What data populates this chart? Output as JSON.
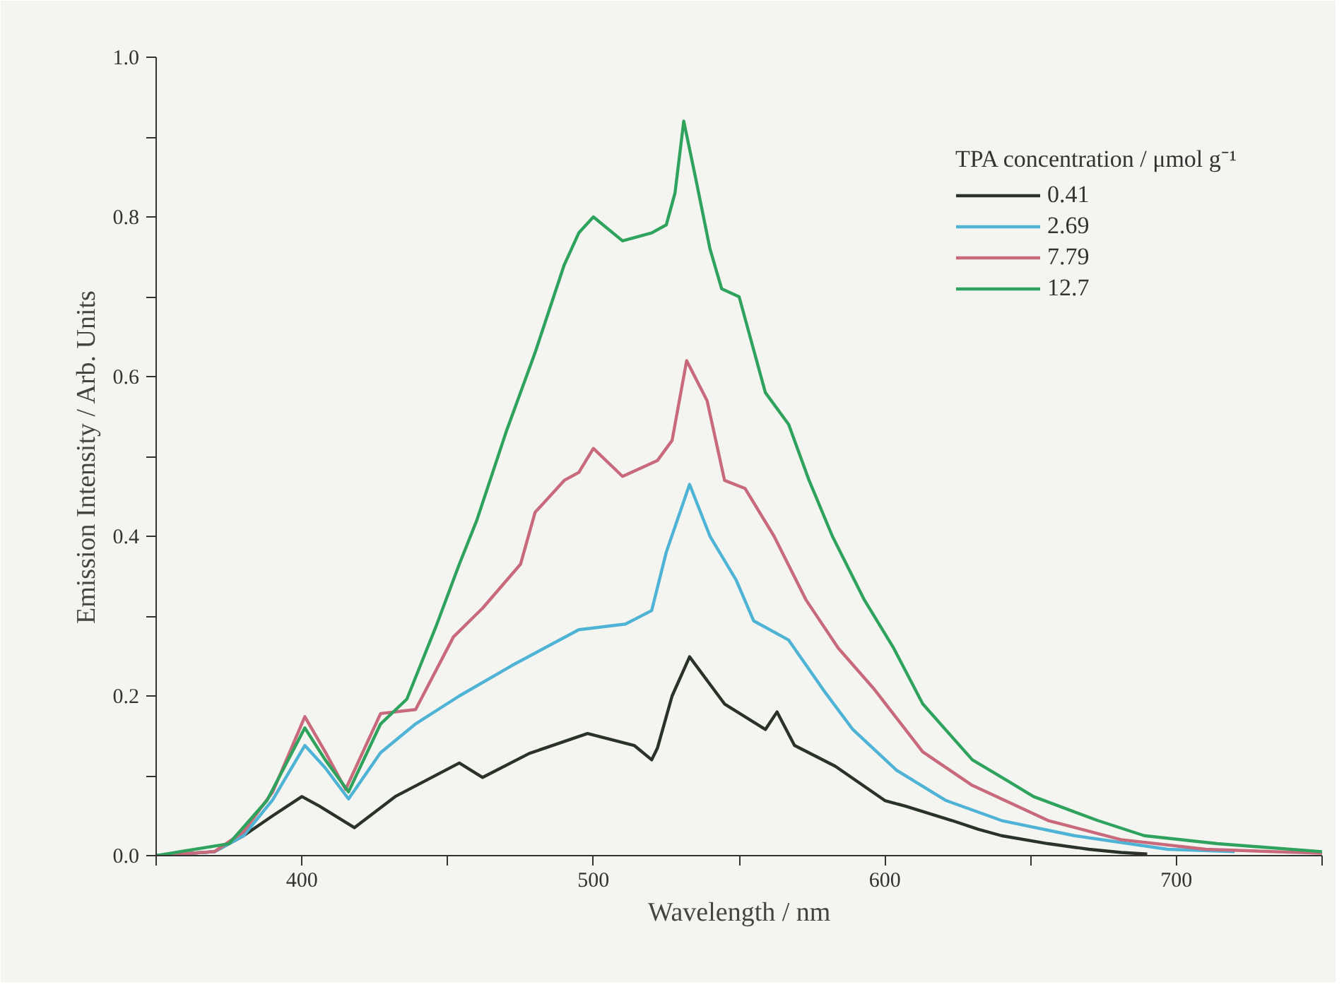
{
  "chart_data": {
    "type": "line",
    "xlabel": "Wavelength / nm",
    "ylabel": "Emission Intensity / Arb. Units",
    "legend_title": "TPA concentration / μmol g⁻¹",
    "legend": "top right",
    "grid": false,
    "line_style": "solid",
    "marker": "none",
    "xlim": [
      350,
      750
    ],
    "ylim": [
      0,
      1.0
    ],
    "xticks": [
      {
        "value": 350,
        "label": null
      },
      400,
      {
        "value": 450,
        "label": null
      },
      500,
      {
        "value": 550,
        "label": null
      },
      600,
      {
        "value": 650,
        "label": null
      },
      700,
      {
        "value": 750,
        "label": null
      }
    ],
    "yticks": [
      {
        "value": 0,
        "label": "0.0"
      },
      {
        "value": 0.1,
        "label": null
      },
      0.2,
      {
        "value": 0.3,
        "label": null
      },
      0.4,
      {
        "value": 0.5,
        "label": null
      },
      0.6,
      {
        "value": 0.7,
        "label": null
      },
      0.8,
      {
        "value": 0.9,
        "label": null
      },
      {
        "value": 1.0,
        "label": "1.0"
      }
    ],
    "series": [
      {
        "name": "0.41",
        "color": "#2b3328",
        "x": [
          350,
          370,
          380,
          390,
          400,
          406,
          418,
          432,
          454,
          462,
          478,
          498,
          514,
          520,
          522,
          527,
          533,
          545,
          559,
          563,
          569,
          583,
          600,
          607,
          623,
          632,
          640,
          656,
          670,
          681,
          690
        ],
        "values": [
          0.0,
          0.005,
          0.025,
          0.05,
          0.074,
          0.062,
          0.035,
          0.074,
          0.116,
          0.098,
          0.128,
          0.153,
          0.138,
          0.12,
          0.135,
          0.2,
          0.249,
          0.19,
          0.158,
          0.18,
          0.138,
          0.112,
          0.069,
          0.062,
          0.044,
          0.033,
          0.025,
          0.015,
          0.008,
          0.004,
          0.002
        ]
      },
      {
        "name": "2.69",
        "color": "#4fb3d6",
        "x": [
          350,
          370,
          380,
          390,
          401,
          408,
          416,
          427,
          439,
          454,
          472,
          495,
          511,
          520,
          525,
          533,
          540,
          549,
          555,
          567,
          579,
          589,
          604,
          621,
          640,
          665,
          697,
          720
        ],
        "values": [
          0.0,
          0.005,
          0.025,
          0.07,
          0.138,
          0.11,
          0.071,
          0.129,
          0.165,
          0.2,
          0.238,
          0.283,
          0.29,
          0.307,
          0.38,
          0.465,
          0.4,
          0.345,
          0.294,
          0.27,
          0.207,
          0.158,
          0.107,
          0.069,
          0.044,
          0.025,
          0.008,
          0.005
        ]
      },
      {
        "name": "7.79",
        "color": "#c86a7c",
        "x": [
          350,
          370,
          380,
          390,
          401,
          408,
          415,
          427,
          439,
          452,
          462,
          475,
          480,
          490,
          495,
          500,
          510,
          522,
          527,
          532,
          539,
          545,
          552,
          562,
          573,
          584,
          596,
          613,
          630,
          656,
          681,
          710,
          750
        ],
        "values": [
          0.0,
          0.005,
          0.03,
          0.08,
          0.174,
          0.13,
          0.083,
          0.178,
          0.183,
          0.274,
          0.31,
          0.365,
          0.43,
          0.47,
          0.48,
          0.51,
          0.475,
          0.495,
          0.52,
          0.62,
          0.57,
          0.47,
          0.46,
          0.4,
          0.32,
          0.26,
          0.21,
          0.13,
          0.088,
          0.044,
          0.02,
          0.008,
          0.003
        ]
      },
      {
        "name": "12.7",
        "color": "#2fa35e",
        "x": [
          350,
          375,
          388,
          401,
          408,
          416,
          427,
          436,
          446,
          454,
          460,
          470,
          480,
          490,
          495,
          500,
          510,
          520,
          525,
          528,
          531,
          535,
          540,
          544,
          550,
          559,
          567,
          574,
          582,
          593,
          603,
          613,
          630,
          642,
          651,
          673,
          689,
          714,
          750
        ],
        "values": [
          0.0,
          0.015,
          0.069,
          0.16,
          0.12,
          0.08,
          0.165,
          0.196,
          0.287,
          0.365,
          0.42,
          0.53,
          0.63,
          0.74,
          0.78,
          0.8,
          0.77,
          0.78,
          0.79,
          0.83,
          0.92,
          0.85,
          0.76,
          0.71,
          0.7,
          0.58,
          0.54,
          0.47,
          0.4,
          0.32,
          0.26,
          0.19,
          0.12,
          0.094,
          0.074,
          0.044,
          0.025,
          0.015,
          0.005
        ]
      }
    ]
  }
}
